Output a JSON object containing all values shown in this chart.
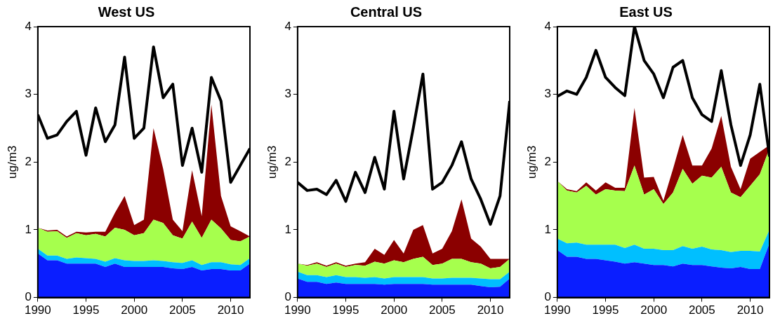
{
  "chart_data": [
    {
      "type": "area",
      "title": "West US",
      "ylabel": "ug/m3",
      "stacked": true,
      "x": [
        1990,
        1991,
        1992,
        1993,
        1994,
        1995,
        1996,
        1997,
        1998,
        1999,
        2000,
        2001,
        2002,
        2003,
        2004,
        2005,
        2006,
        2007,
        2008,
        2009,
        2010,
        2011,
        2012
      ],
      "xlim": [
        1990,
        2012
      ],
      "xticks": [
        1990,
        1995,
        2000,
        2005,
        2010
      ],
      "ylim": [
        0,
        4
      ],
      "yticks": [
        0,
        1,
        2,
        3,
        4
      ],
      "series": [
        {
          "color": "#0a1eff",
          "values": [
            0.65,
            0.55,
            0.55,
            0.5,
            0.5,
            0.5,
            0.5,
            0.45,
            0.5,
            0.45,
            0.45,
            0.45,
            0.45,
            0.45,
            0.43,
            0.42,
            0.45,
            0.4,
            0.42,
            0.42,
            0.4,
            0.4,
            0.5
          ]
        },
        {
          "color": "#00bfff",
          "values": [
            0.07,
            0.07,
            0.07,
            0.07,
            0.09,
            0.08,
            0.07,
            0.08,
            0.08,
            0.1,
            0.09,
            0.09,
            0.1,
            0.09,
            0.09,
            0.09,
            0.1,
            0.08,
            0.1,
            0.1,
            0.09,
            0.08,
            0.08
          ]
        },
        {
          "color": "#a6ff4d",
          "values": [
            0.31,
            0.35,
            0.36,
            0.31,
            0.36,
            0.34,
            0.37,
            0.37,
            0.45,
            0.45,
            0.38,
            0.41,
            0.6,
            0.56,
            0.4,
            0.36,
            0.57,
            0.4,
            0.63,
            0.5,
            0.36,
            0.35,
            0.32
          ]
        },
        {
          "color": "#8b0000",
          "values": [
            0,
            0.02,
            0.02,
            0.02,
            0.02,
            0.04,
            0.03,
            0.07,
            0.22,
            0.5,
            0.15,
            0.2,
            1.35,
            0.8,
            0.23,
            0.11,
            0.76,
            0.32,
            1.7,
            0.48,
            0.2,
            0.15,
            0
          ]
        },
        {
          "type": "line",
          "color": "#000000",
          "values": [
            2.7,
            2.35,
            2.4,
            2.6,
            2.75,
            2.1,
            2.8,
            2.3,
            2.55,
            3.55,
            2.35,
            2.5,
            3.7,
            2.95,
            3.15,
            1.95,
            2.5,
            1.85,
            3.25,
            2.9,
            1.7,
            1.95,
            2.2
          ]
        }
      ]
    },
    {
      "type": "area",
      "title": "Central US",
      "ylabel": "ug/m3",
      "stacked": true,
      "x": [
        1990,
        1991,
        1992,
        1993,
        1994,
        1995,
        1996,
        1997,
        1998,
        1999,
        2000,
        2001,
        2002,
        2003,
        2004,
        2005,
        2006,
        2007,
        2008,
        2009,
        2010,
        2011,
        2012
      ],
      "xlim": [
        1990,
        2012
      ],
      "xticks": [
        1990,
        1995,
        2000,
        2005,
        2010
      ],
      "ylim": [
        0,
        4
      ],
      "yticks": [
        0,
        1,
        2,
        3,
        4
      ],
      "series": [
        {
          "color": "#0a1eff",
          "values": [
            0.28,
            0.23,
            0.23,
            0.2,
            0.22,
            0.2,
            0.2,
            0.2,
            0.2,
            0.19,
            0.2,
            0.2,
            0.2,
            0.2,
            0.19,
            0.19,
            0.19,
            0.19,
            0.19,
            0.17,
            0.15,
            0.16,
            0.28
          ]
        },
        {
          "color": "#00bfff",
          "values": [
            0.1,
            0.1,
            0.1,
            0.1,
            0.11,
            0.1,
            0.1,
            0.09,
            0.1,
            0.09,
            0.1,
            0.1,
            0.1,
            0.1,
            0.09,
            0.09,
            0.1,
            0.1,
            0.1,
            0.11,
            0.12,
            0.11,
            0.1
          ]
        },
        {
          "color": "#a6ff4d",
          "values": [
            0.12,
            0.14,
            0.17,
            0.15,
            0.17,
            0.15,
            0.18,
            0.18,
            0.23,
            0.22,
            0.25,
            0.22,
            0.27,
            0.3,
            0.2,
            0.22,
            0.28,
            0.28,
            0.23,
            0.22,
            0.16,
            0.18,
            0.19
          ]
        },
        {
          "color": "#8b0000",
          "values": [
            0,
            0.01,
            0.02,
            0.02,
            0.02,
            0.02,
            0.02,
            0.05,
            0.19,
            0.13,
            0.3,
            0.13,
            0.43,
            0.47,
            0.17,
            0.22,
            0.41,
            0.88,
            0.35,
            0.25,
            0.14,
            0.12,
            0
          ]
        },
        {
          "type": "line",
          "color": "#000000",
          "values": [
            1.7,
            1.58,
            1.6,
            1.52,
            1.73,
            1.42,
            1.85,
            1.55,
            2.07,
            1.6,
            2.75,
            1.75,
            2.5,
            3.3,
            1.6,
            1.7,
            1.95,
            2.3,
            1.75,
            1.45,
            1.08,
            1.5,
            2.9
          ]
        }
      ]
    },
    {
      "type": "area",
      "title": "East US",
      "ylabel": "ug/m3",
      "stacked": true,
      "x": [
        1990,
        1991,
        1992,
        1993,
        1994,
        1995,
        1996,
        1997,
        1998,
        1999,
        2000,
        2001,
        2002,
        2003,
        2004,
        2005,
        2006,
        2007,
        2008,
        2009,
        2010,
        2011,
        2012
      ],
      "xlim": [
        1990,
        2012
      ],
      "xticks": [
        1990,
        1995,
        2000,
        2005,
        2010
      ],
      "ylim": [
        0,
        4
      ],
      "yticks": [
        0,
        1,
        2,
        3,
        4
      ],
      "series": [
        {
          "color": "#0a1eff",
          "values": [
            0.7,
            0.6,
            0.6,
            0.57,
            0.57,
            0.55,
            0.53,
            0.5,
            0.52,
            0.5,
            0.48,
            0.48,
            0.46,
            0.5,
            0.48,
            0.48,
            0.46,
            0.44,
            0.43,
            0.45,
            0.42,
            0.42,
            0.8
          ]
        },
        {
          "color": "#00bfff",
          "values": [
            0.17,
            0.2,
            0.21,
            0.21,
            0.21,
            0.23,
            0.25,
            0.23,
            0.26,
            0.22,
            0.24,
            0.22,
            0.24,
            0.26,
            0.24,
            0.27,
            0.25,
            0.26,
            0.24,
            0.24,
            0.27,
            0.26,
            0.2
          ]
        },
        {
          "color": "#a6ff4d",
          "values": [
            0.85,
            0.78,
            0.74,
            0.87,
            0.74,
            0.82,
            0.8,
            0.84,
            1.17,
            0.8,
            0.88,
            0.68,
            0.85,
            1.14,
            0.96,
            1.05,
            1.06,
            1.23,
            0.88,
            0.79,
            0.96,
            1.14,
            1.2
          ]
        },
        {
          "color": "#8b0000",
          "values": [
            0,
            0.02,
            0.02,
            0.05,
            0.06,
            0.1,
            0.04,
            0.05,
            0.85,
            0.25,
            0.18,
            0.05,
            0.35,
            0.5,
            0.27,
            0.15,
            0.43,
            0.75,
            0.38,
            0.12,
            0.4,
            0.33,
            0.05
          ]
        },
        {
          "type": "line",
          "color": "#000000",
          "values": [
            2.97,
            3.05,
            3.0,
            3.25,
            3.65,
            3.25,
            3.1,
            2.98,
            4.0,
            3.5,
            3.3,
            2.95,
            3.4,
            3.5,
            2.95,
            2.7,
            2.6,
            3.35,
            2.55,
            1.95,
            2.4,
            3.15,
            2.08
          ]
        }
      ]
    }
  ]
}
